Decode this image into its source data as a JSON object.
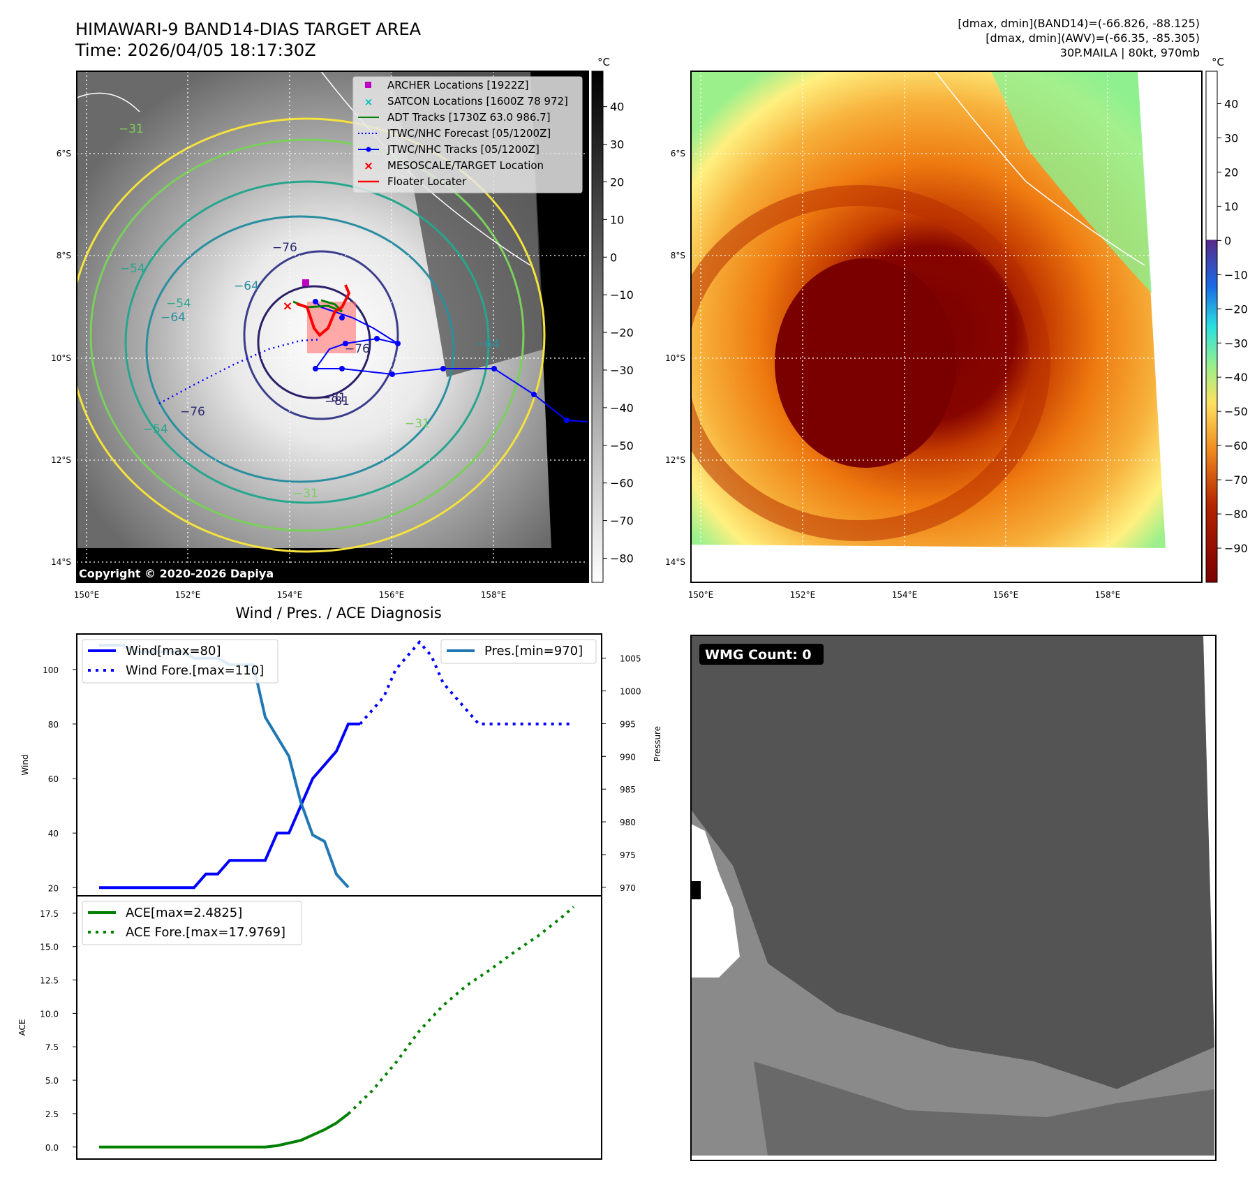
{
  "header": {
    "title_line1": "HIMAWARI-9 BAND14-DIAS TARGET AREA",
    "title_line2": "Time: 2026/04/05 18:17:30Z",
    "info_line1": "[dmax, dmin](BAND14)=(-66.826, -88.125)",
    "info_line2": "[dmax, dmin](AWV)=(-66.35, -85.305)",
    "info_line3": "30P.MAILA | 80kt, 970mb",
    "copyright": "Copyright © 2020-2026 Dapiya"
  },
  "map_axes": {
    "lon_labels": [
      "150°E",
      "152°E",
      "154°E",
      "156°E",
      "158°E"
    ],
    "lat_labels": [
      "6°S",
      "8°S",
      "10°S",
      "12°S",
      "14°S"
    ],
    "colorbar_unit": "°C"
  },
  "colorbar_band14": {
    "ticks": [
      "40",
      "30",
      "20",
      "10",
      "0",
      "−10",
      "−20",
      "−30",
      "−40",
      "−50",
      "−60",
      "−70",
      "−80"
    ]
  },
  "colorbar_awv": {
    "ticks": [
      "40",
      "30",
      "20",
      "10",
      "0",
      "−10",
      "−20",
      "−30",
      "−40",
      "−50",
      "−60",
      "−70",
      "−80",
      "−90"
    ]
  },
  "legend_map": [
    {
      "label": "ARCHER Locations [1922Z]",
      "color": "#c000c0"
    },
    {
      "label": "SATCON Locations [1600Z 78 972]",
      "color": "#00c0c0"
    },
    {
      "label": "ADT Tracks [1730Z 63.0 986.7]",
      "color": "#008000"
    },
    {
      "label": "JTWC/NHC Forecast [05/1200Z]",
      "color": "#0000ff"
    },
    {
      "label": "JTWC/NHC Tracks [05/1200Z]",
      "color": "#0000ff"
    },
    {
      "label": "MESOSCALE/TARGET Location",
      "color": "#ff0000"
    },
    {
      "label": "Floater Locater",
      "color": "#ff0000"
    }
  ],
  "contour_labels": [
    "−76",
    "−81",
    "−76",
    "−64",
    "−54",
    "−64",
    "−54",
    "−31",
    "−31",
    "−64",
    "−54",
    "−31",
    "−76",
    "−81"
  ],
  "wmg_label": "WMG Count: 0",
  "chart_data": [
    {
      "type": "line",
      "title": "Wind / Pres. / ACE Diagnosis",
      "ylabel": "Wind",
      "y2label": "Pressure",
      "ylim": [
        17,
        113
      ],
      "y2lim": [
        968.7,
        1008.7
      ],
      "yticks": [
        20,
        40,
        60,
        80,
        100
      ],
      "y2ticks": [
        970,
        975,
        980,
        985,
        990,
        995,
        1000,
        1005
      ],
      "x_steps": 41,
      "series": [
        {
          "name": "Wind[max=80]",
          "color": "#0000ff",
          "style": "solid",
          "x": [
            0,
            1,
            2,
            3,
            4,
            5,
            6,
            7,
            8,
            9,
            10,
            11,
            12,
            13,
            14,
            15,
            16,
            17,
            18,
            19,
            20,
            21,
            22
          ],
          "values": [
            20,
            20,
            20,
            20,
            20,
            20,
            20,
            20,
            20,
            25,
            25,
            30,
            30,
            30,
            30,
            40,
            40,
            50,
            60,
            65,
            70,
            80,
            80
          ]
        },
        {
          "name": "Wind Fore.[max=110]",
          "color": "#0000ff",
          "style": "dotted",
          "x": [
            22,
            23,
            24,
            25,
            26,
            27,
            28,
            29,
            30,
            31,
            32,
            33,
            34,
            35,
            36,
            37,
            38,
            39,
            40
          ],
          "values": [
            80,
            85,
            90,
            100,
            105,
            110,
            105,
            95,
            90,
            85,
            80,
            80,
            80,
            80,
            80,
            80,
            80,
            80,
            80
          ]
        },
        {
          "name": "Pres.[min=970]",
          "color": "#1f77b4",
          "style": "solid",
          "axis": "y2",
          "x": [
            0,
            1,
            2,
            3,
            4,
            5,
            6,
            7,
            8,
            9,
            10,
            11,
            12,
            13,
            14,
            15,
            16,
            17,
            18,
            19,
            20,
            21
          ],
          "values": [
            1007,
            1007,
            1007,
            1006,
            1006,
            1006,
            1006,
            1006,
            1005,
            1005,
            1005,
            1004,
            1004,
            1004,
            996,
            993,
            990,
            983,
            978,
            977,
            972,
            970
          ]
        }
      ]
    },
    {
      "type": "line",
      "ylabel": "ACE",
      "ylim": [
        -0.9,
        18.8
      ],
      "yticks": [
        0.0,
        2.5,
        5.0,
        7.5,
        10.0,
        12.5,
        15.0,
        17.5
      ],
      "series": [
        {
          "name": "ACE[max=2.4825]",
          "color": "#008000",
          "style": "solid",
          "x": [
            0,
            2,
            4,
            6,
            8,
            10,
            12,
            14,
            15,
            16,
            17,
            18,
            19,
            20,
            21
          ],
          "values": [
            0,
            0,
            0,
            0,
            0,
            0,
            0,
            0,
            0.1,
            0.3,
            0.5,
            0.9,
            1.3,
            1.8,
            2.48
          ]
        },
        {
          "name": "ACE Fore.[max=17.9769]",
          "color": "#008000",
          "style": "dotted",
          "x": [
            21,
            23,
            25,
            27,
            29,
            31,
            33,
            35,
            37,
            39,
            40
          ],
          "values": [
            2.48,
            4.2,
            6.3,
            8.7,
            10.6,
            12.1,
            13.3,
            14.6,
            15.8,
            17.2,
            17.98
          ]
        }
      ]
    }
  ]
}
